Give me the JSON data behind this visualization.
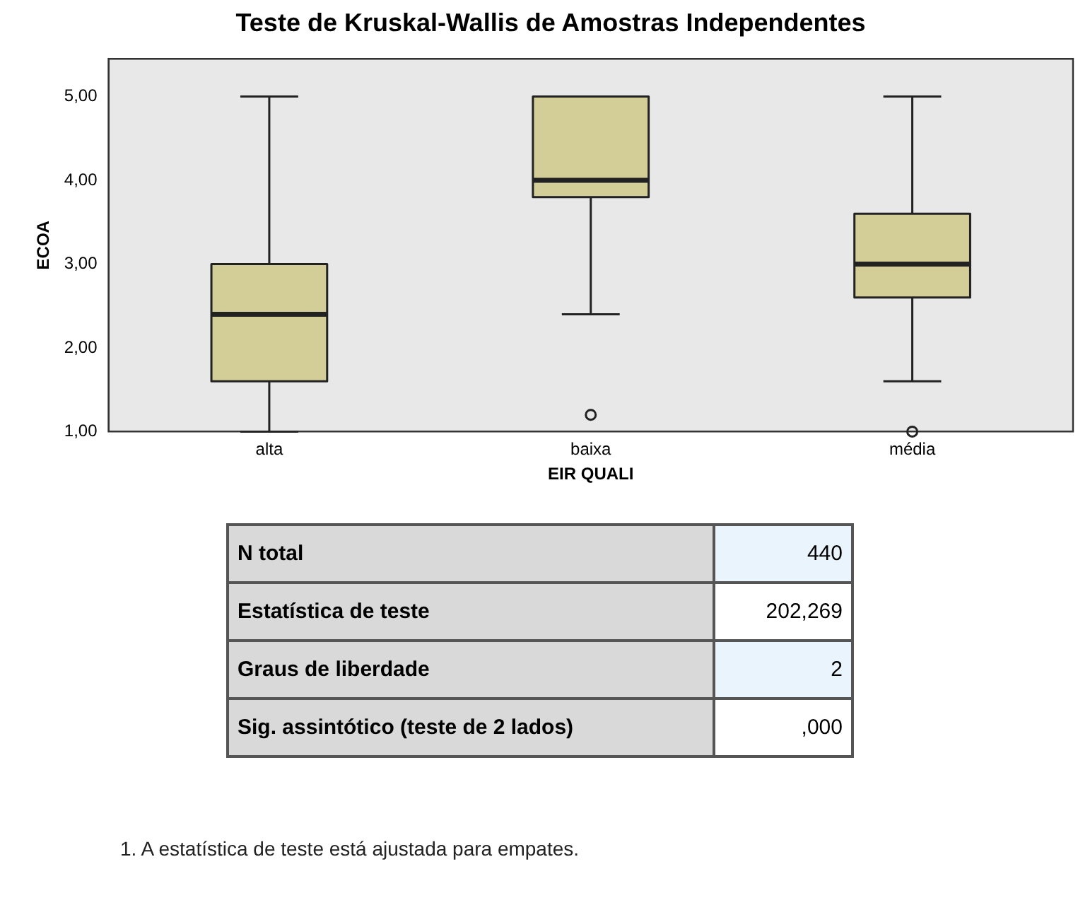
{
  "chart_data": {
    "type": "box",
    "title": "Teste de Kruskal-Wallis de Amostras Independentes",
    "xlabel": "EIR QUALI",
    "ylabel": "ECOA",
    "categories": [
      "alta",
      "baixa",
      "média"
    ],
    "color": "#d3ce97",
    "boxes": [
      {
        "low": 1.0,
        "q1": 1.6,
        "median": 2.4,
        "q3": 3.0,
        "high": 5.0
      },
      {
        "low": 2.4,
        "q1": 3.8,
        "median": 4.0,
        "q3": 5.0,
        "high": 5.0,
        "outliers": [
          1.2
        ]
      },
      {
        "low": 1.6,
        "q1": 2.6,
        "median": 3.0,
        "q3": 3.6,
        "high": 5.0,
        "outliers": [
          1.0
        ]
      }
    ],
    "ylim": [
      1,
      5.45
    ],
    "yticks": [
      {
        "value": 1,
        "label": "1,00"
      },
      {
        "value": 2,
        "label": "2,00"
      },
      {
        "value": 3,
        "label": "3,00"
      },
      {
        "value": 4,
        "label": "4,00"
      },
      {
        "value": 5,
        "label": "5,00"
      }
    ],
    "grid": false,
    "legend": false,
    "annotations": [
      "N total",
      "440",
      "Estatística de teste",
      "202,269",
      "Graus de liberdade",
      "2",
      "Sig. assintótico (teste de 2 lados)",
      ",000",
      "1.  A estatística de teste está ajustada para empates."
    ]
  }
}
